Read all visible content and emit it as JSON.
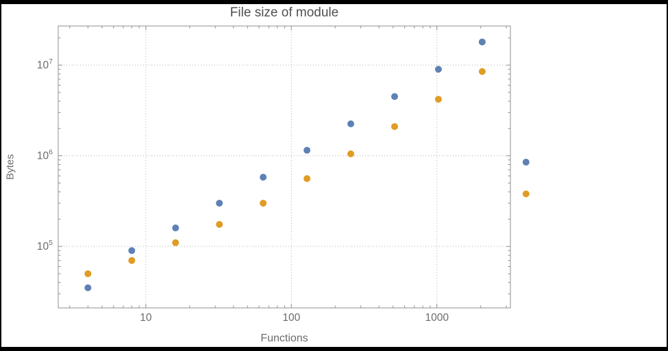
{
  "page": {
    "background": "#000000",
    "canvas_background": "#ffffff"
  },
  "chart_data": {
    "type": "scatter",
    "title": "File size of module",
    "xlabel": "Functions",
    "ylabel": "Bytes",
    "x_scale": "log",
    "y_scale": "log",
    "grid": true,
    "legend": "none",
    "xlim": [
      2.5,
      3200
    ],
    "ylim": [
      21000,
      27000000
    ],
    "x": [
      4,
      8,
      16,
      32,
      64,
      128,
      256,
      512,
      1024,
      2048,
      4096
    ],
    "series": [
      {
        "name": "series-blue",
        "color": "#5e81b5",
        "values": [
          35000,
          90000,
          160000,
          300000,
          580000,
          1150000,
          2250000,
          4500000,
          9000000,
          18000000,
          850000
        ]
      },
      {
        "name": "series-orange",
        "color": "#e19c24",
        "values": [
          50000,
          70000,
          110000,
          175000,
          300000,
          560000,
          1050000,
          2100000,
          4200000,
          8500000,
          380000
        ]
      }
    ],
    "x_ticks": [
      {
        "value": 10,
        "label": "10"
      },
      {
        "value": 100,
        "label": "100"
      },
      {
        "value": 1000,
        "label": "1000"
      }
    ],
    "y_ticks": [
      {
        "value": 100000,
        "label": "10^5",
        "base": "10",
        "exp": "5"
      },
      {
        "value": 1000000,
        "label": "10^6",
        "base": "10",
        "exp": "6"
      },
      {
        "value": 10000000,
        "label": "10^7",
        "base": "10",
        "exp": "7"
      }
    ],
    "colors": {
      "frame": "#8f8f8f",
      "grid": "#b3b3b3",
      "title_text": "#4f4f4f",
      "axis_text": "#6b6b6b",
      "tick_text": "#6b6b6b"
    },
    "marker_radius": 5
  }
}
